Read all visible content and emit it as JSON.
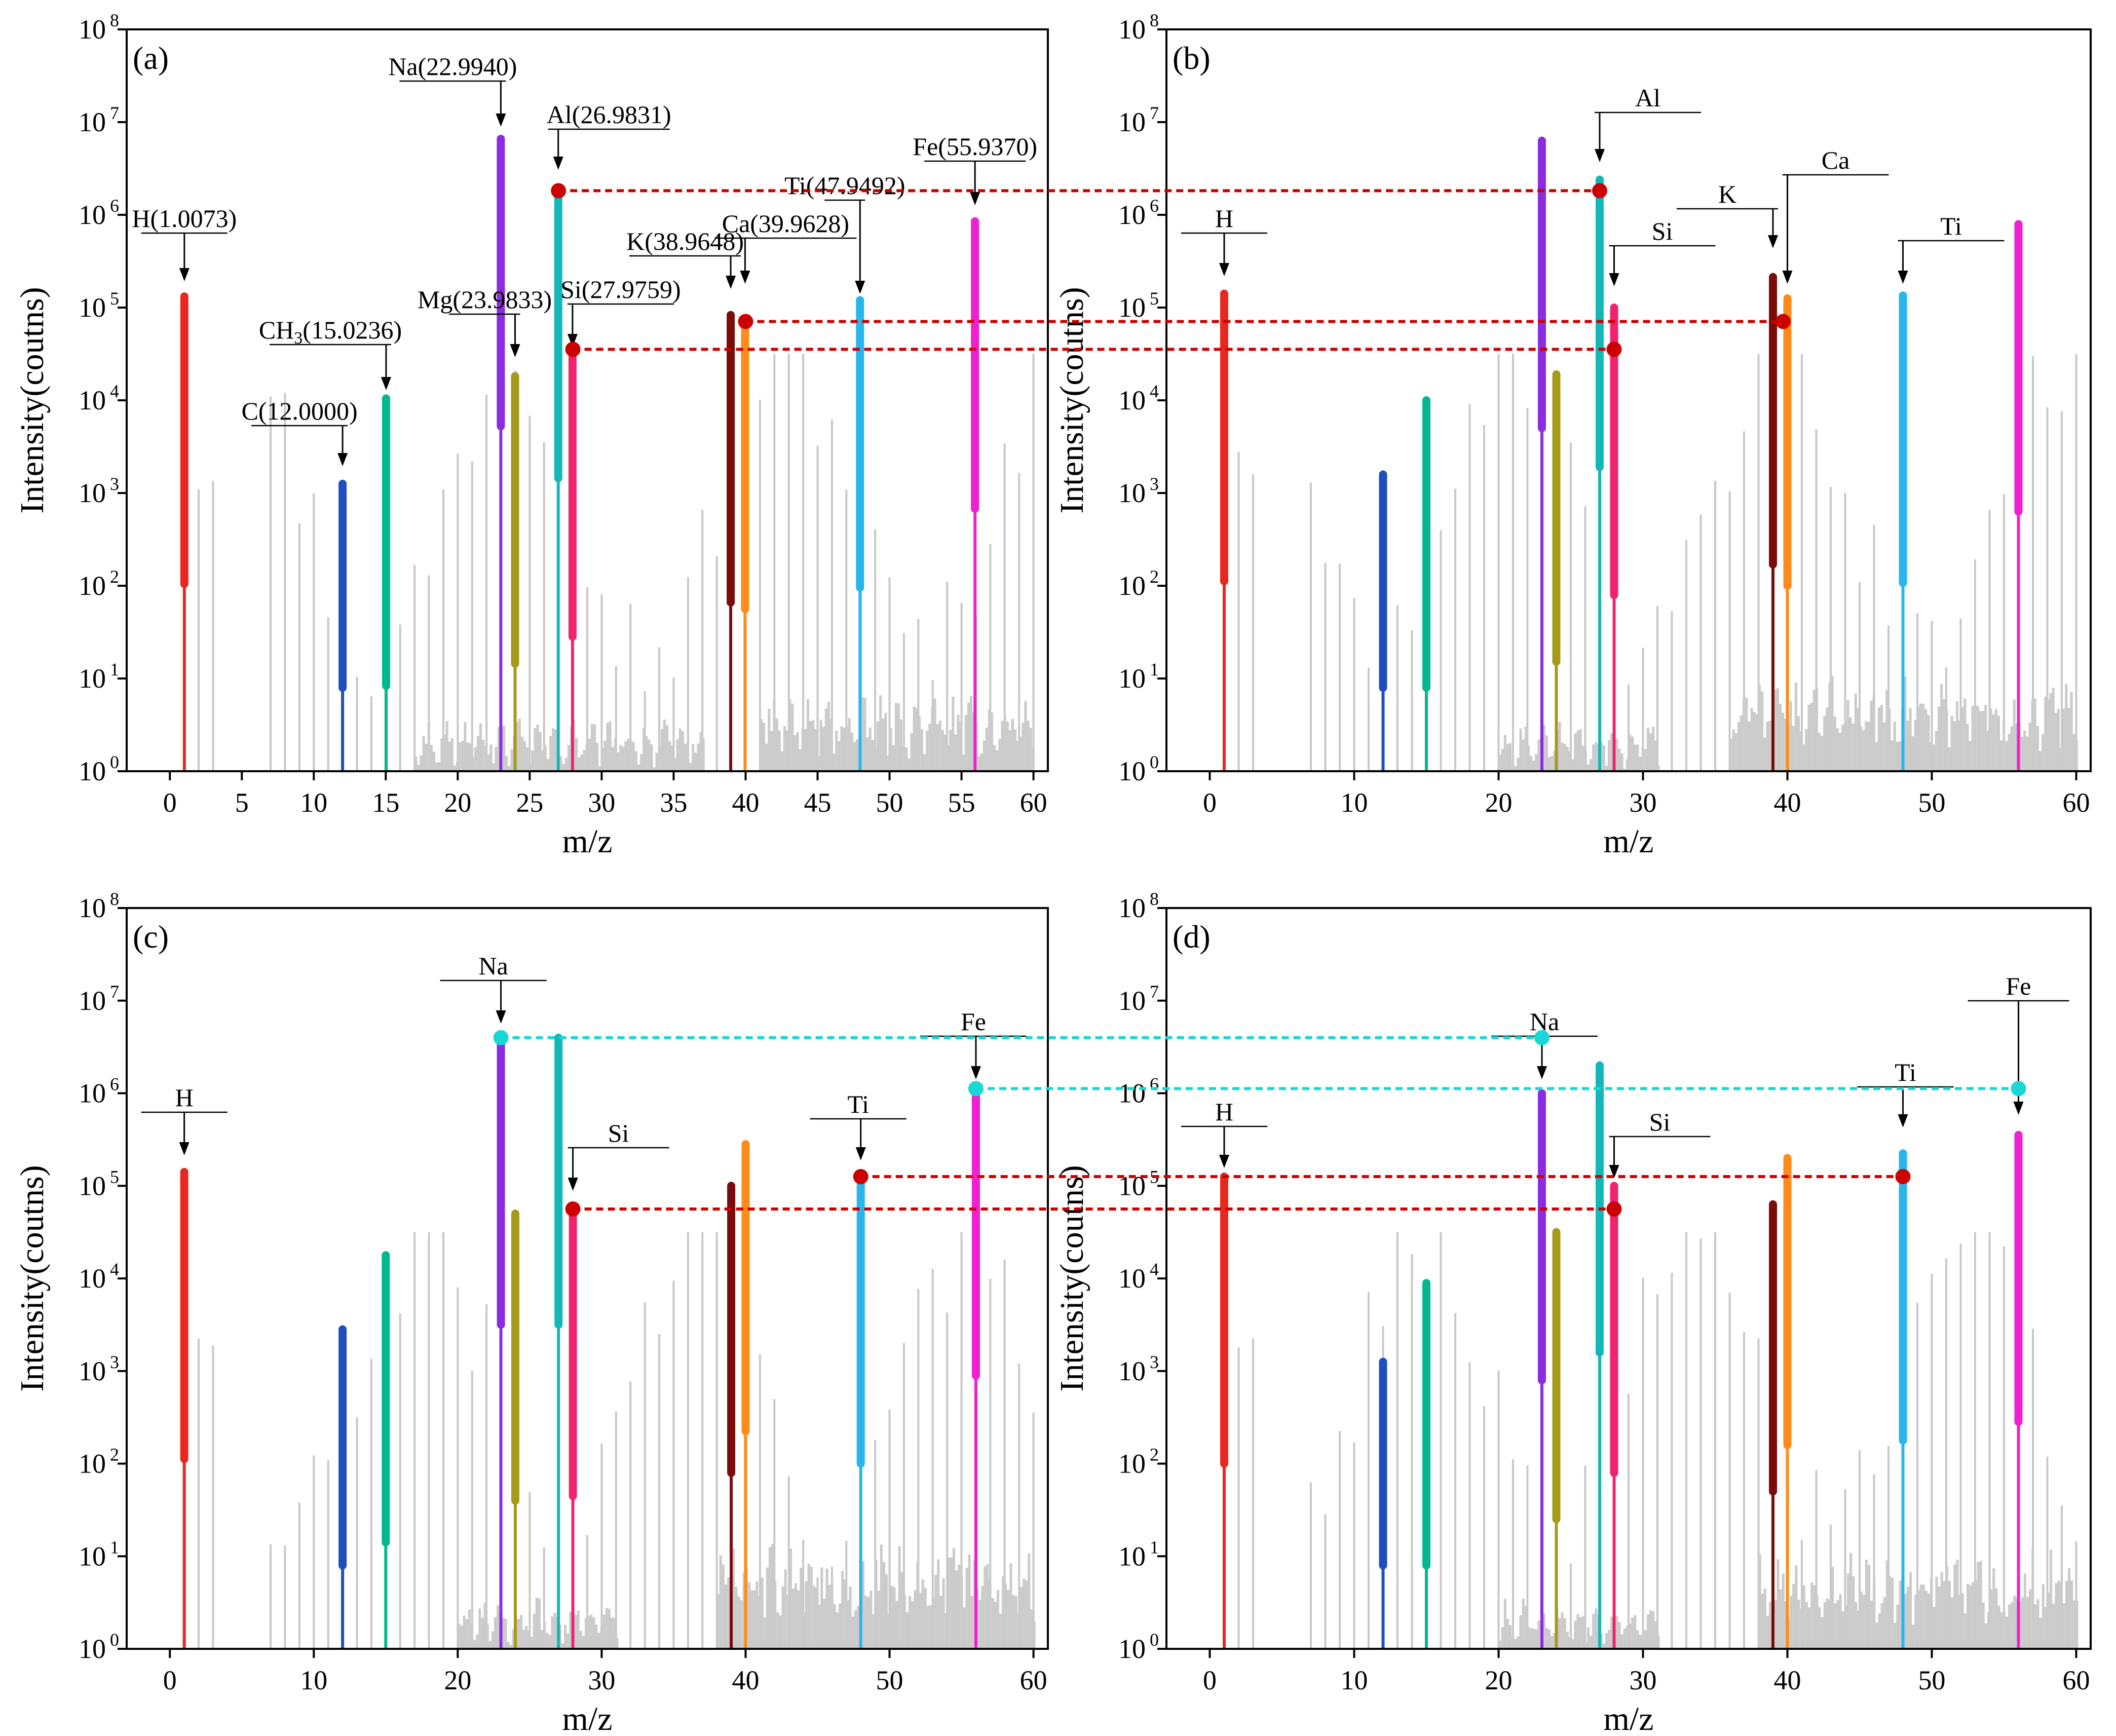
{
  "colors": {
    "background_peaks": "#c8c8c8",
    "red_connector": "#cc0000",
    "cyan_connector": "#1ad6d6",
    "H": "#e8281e",
    "C": "#1f4fbf",
    "CH3": "#00b890",
    "Na": "#8b2be2",
    "Mg": "#a59a1a",
    "Al": "#12b8b8",
    "Si": "#f0246e",
    "K": "#7a0c0c",
    "Ca": "#ff8c1a",
    "Ti": "#29b6ec",
    "Fe": "#f020d0"
  },
  "chart_data": [
    {
      "panel": "(a)",
      "type": "bar",
      "xlabel": "m/z",
      "ylabel": "Intensity(coutns)",
      "xlim": [
        -3,
        61
      ],
      "x_ticks": [
        0,
        5,
        10,
        15,
        20,
        25,
        30,
        35,
        40,
        45,
        50,
        55,
        60
      ],
      "ylim_log10": [
        0,
        8
      ],
      "y_ticks_base": "10",
      "y_ticks_exp": [
        "0",
        "1",
        "2",
        "3",
        "4",
        "5",
        "6",
        "7",
        "8"
      ],
      "noise_range": [
        17,
        37,
        0.32
      ],
      "noise_range2": [
        41,
        60,
        0.5
      ],
      "peaks": [
        {
          "element": "H",
          "mz": 1.0073,
          "log_intensity": 5.12,
          "label": "H(1.0073)"
        },
        {
          "element": "C",
          "mz": 12.0,
          "log_intensity": 3.1,
          "label": "C(12.0000)"
        },
        {
          "element": "CH3",
          "mz": 15.0236,
          "label_base": "CH",
          "label_sub": "3",
          "label_rest": "(15.0236)",
          "log_intensity": 4.02
        },
        {
          "element": "Na",
          "mz": 22.994,
          "log_intensity": 6.82,
          "label": "Na(22.9940)"
        },
        {
          "element": "Mg",
          "mz": 23.9833,
          "log_intensity": 4.26,
          "label": "Mg(23.9833)"
        },
        {
          "element": "Al",
          "mz": 26.9831,
          "log_intensity": 6.26,
          "label": "Al(26.9831)"
        },
        {
          "element": "Si",
          "mz": 27.9759,
          "log_intensity": 4.55,
          "label": "Si(27.9759)"
        },
        {
          "element": "K",
          "mz": 38.9648,
          "log_intensity": 4.92,
          "label": "K(38.9648)"
        },
        {
          "element": "Ca",
          "mz": 39.9628,
          "log_intensity": 4.85,
          "label": "Ca(39.9628)"
        },
        {
          "element": "Ti",
          "mz": 47.9492,
          "log_intensity": 5.08,
          "label": "Ti(47.9492)"
        },
        {
          "element": "Fe",
          "mz": 55.937,
          "log_intensity": 5.93,
          "label": "Fe(55.9370)"
        }
      ]
    },
    {
      "panel": "(b)",
      "type": "bar",
      "xlabel": "m/z",
      "ylabel": "Intensity(coutns)",
      "xlim": [
        -3,
        61
      ],
      "x_ticks": [
        0,
        10,
        20,
        30,
        40,
        50,
        60
      ],
      "ylim_log10": [
        0,
        8
      ],
      "y_ticks_base": "10",
      "y_ticks_exp": [
        "0",
        "1",
        "2",
        "3",
        "4",
        "5",
        "6",
        "7",
        "8"
      ],
      "noise_range": [
        20,
        31,
        0.3
      ],
      "noise_range2": [
        36,
        60,
        0.65
      ],
      "peaks": [
        {
          "element": "H",
          "mz": 1.0,
          "log_intensity": 5.15,
          "label": "H"
        },
        {
          "element": "C",
          "mz": 12.0,
          "log_intensity": 3.2,
          "label": ""
        },
        {
          "element": "CH3",
          "mz": 15.0,
          "log_intensity": 4.0,
          "label": ""
        },
        {
          "element": "Na",
          "mz": 23.0,
          "log_intensity": 6.8,
          "label": ""
        },
        {
          "element": "Mg",
          "mz": 24.0,
          "log_intensity": 4.28,
          "label": ""
        },
        {
          "element": "Al",
          "mz": 27.0,
          "log_intensity": 6.38,
          "label": "Al"
        },
        {
          "element": "Si",
          "mz": 28.0,
          "log_intensity": 5.0,
          "label": "Si"
        },
        {
          "element": "K",
          "mz": 39.0,
          "log_intensity": 5.33,
          "label": "K"
        },
        {
          "element": "Ca",
          "mz": 40.0,
          "log_intensity": 5.1,
          "label": "Ca"
        },
        {
          "element": "Ti",
          "mz": 48.0,
          "log_intensity": 5.13,
          "label": "Ti"
        },
        {
          "element": "Fe",
          "mz": 56.0,
          "log_intensity": 5.9,
          "label": ""
        }
      ]
    },
    {
      "panel": "(c)",
      "type": "bar",
      "xlabel": "m/z",
      "ylabel": "Intensity(coutns)",
      "xlim": [
        -3,
        61
      ],
      "x_ticks": [
        0,
        10,
        20,
        30,
        40,
        50,
        60
      ],
      "ylim_log10": [
        0,
        8
      ],
      "y_ticks_base": "10",
      "y_ticks_exp": [
        "0",
        "1",
        "2",
        "3",
        "4",
        "5",
        "6",
        "7",
        "8"
      ],
      "noise_range": [
        20,
        31,
        0.32
      ],
      "noise_range2": [
        38,
        60,
        0.75
      ],
      "peaks": [
        {
          "element": "H",
          "mz": 1.0,
          "log_intensity": 5.15,
          "label": "H"
        },
        {
          "element": "C",
          "mz": 12.0,
          "log_intensity": 3.45,
          "label": ""
        },
        {
          "element": "CH3",
          "mz": 15.0,
          "log_intensity": 4.25,
          "label": ""
        },
        {
          "element": "Na",
          "mz": 23.0,
          "log_intensity": 6.6,
          "label": "Na"
        },
        {
          "element": "Mg",
          "mz": 24.0,
          "log_intensity": 4.7,
          "label": ""
        },
        {
          "element": "Al",
          "mz": 27.0,
          "log_intensity": 6.6,
          "label": ""
        },
        {
          "element": "Si",
          "mz": 28.0,
          "log_intensity": 4.75,
          "label": "Si"
        },
        {
          "element": "K",
          "mz": 39.0,
          "log_intensity": 5.0,
          "label": ""
        },
        {
          "element": "Ca",
          "mz": 40.0,
          "log_intensity": 5.45,
          "label": ""
        },
        {
          "element": "Ti",
          "mz": 48.0,
          "log_intensity": 5.1,
          "label": "Ti"
        },
        {
          "element": "Fe",
          "mz": 56.0,
          "log_intensity": 6.05,
          "label": "Fe"
        }
      ]
    },
    {
      "panel": "(d)",
      "type": "bar",
      "xlabel": "m/z",
      "ylabel": "Intensity(coutns)",
      "xlim": [
        -3,
        61
      ],
      "x_ticks": [
        0,
        10,
        20,
        30,
        40,
        50,
        60
      ],
      "ylim_log10": [
        0,
        8
      ],
      "y_ticks_base": "10",
      "y_ticks_exp": [
        "0",
        "1",
        "2",
        "3",
        "4",
        "5",
        "6",
        "7",
        "8"
      ],
      "noise_range": [
        20,
        31,
        0.3
      ],
      "noise_range2": [
        38,
        60,
        0.7
      ],
      "peaks": [
        {
          "element": "H",
          "mz": 1.0,
          "log_intensity": 5.1,
          "label": "H"
        },
        {
          "element": "C",
          "mz": 12.0,
          "log_intensity": 3.1,
          "label": ""
        },
        {
          "element": "CH3",
          "mz": 15.0,
          "log_intensity": 3.95,
          "label": ""
        },
        {
          "element": "Na",
          "mz": 23.0,
          "log_intensity": 6.0,
          "label": "Na"
        },
        {
          "element": "Mg",
          "mz": 24.0,
          "log_intensity": 4.5,
          "label": ""
        },
        {
          "element": "Al",
          "mz": 27.0,
          "log_intensity": 6.3,
          "label": ""
        },
        {
          "element": "Si",
          "mz": 28.0,
          "log_intensity": 5.0,
          "label": "Si"
        },
        {
          "element": "K",
          "mz": 39.0,
          "log_intensity": 4.8,
          "label": ""
        },
        {
          "element": "Ca",
          "mz": 40.0,
          "log_intensity": 5.3,
          "label": ""
        },
        {
          "element": "Ti",
          "mz": 48.0,
          "log_intensity": 5.35,
          "label": "Ti"
        },
        {
          "element": "Fe",
          "mz": 56.0,
          "log_intensity": 5.55,
          "label": "Fe"
        }
      ]
    }
  ],
  "connectors": [
    {
      "name": "al-a-to-b",
      "color": "red",
      "from": [
        0,
        27.0
      ],
      "to": [
        1,
        27.0
      ],
      "log_intensity": 6.26
    },
    {
      "name": "ca-a-to-k-b",
      "color": "red",
      "from": [
        0,
        40.0
      ],
      "to": [
        1,
        39.7
      ],
      "log_intensity": 4.85
    },
    {
      "name": "si-a-to-b",
      "color": "red",
      "from": [
        0,
        28.0
      ],
      "to": [
        1,
        28.0
      ],
      "log_intensity": 4.55
    },
    {
      "name": "na-c-to-d",
      "color": "cyan",
      "from": [
        2,
        23.0
      ],
      "to": [
        3,
        23.0
      ],
      "log_intensity": 6.6
    },
    {
      "name": "fe-c-to-d",
      "color": "cyan",
      "from": [
        2,
        56.0
      ],
      "to": [
        3,
        56.0
      ],
      "log_intensity": 6.05
    },
    {
      "name": "ti-c-to-d",
      "color": "red",
      "from": [
        2,
        48.0
      ],
      "to": [
        3,
        48.0
      ],
      "log_intensity": 5.1
    },
    {
      "name": "si-c-to-d",
      "color": "red",
      "from": [
        2,
        28.0
      ],
      "to": [
        3,
        28.0
      ],
      "log_intensity": 4.75
    }
  ]
}
